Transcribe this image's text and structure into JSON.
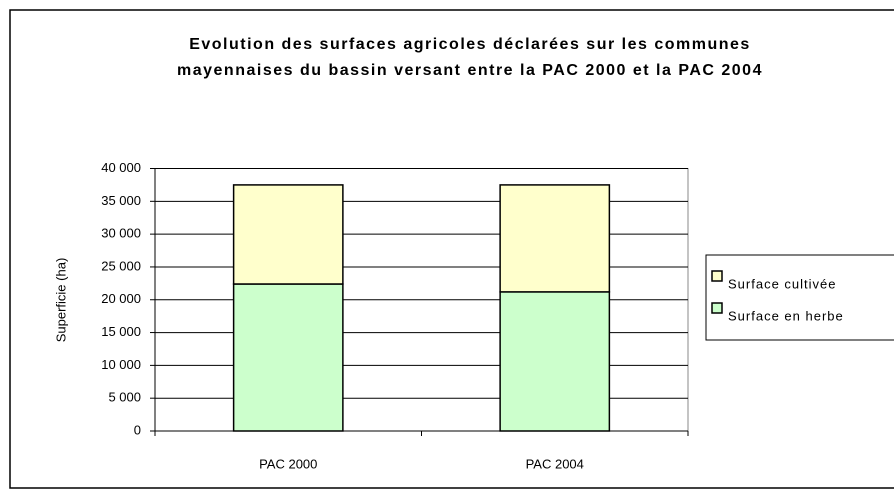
{
  "chart_data": {
    "type": "bar",
    "stacked": true,
    "title": "Evolution des surfaces agricoles déclarées sur les communes mayennaises du bassin versant entre la PAC 2000 et la PAC 2004",
    "y_label": "Superficie (ha)",
    "categories": [
      "PAC 2000",
      "PAC 2004"
    ],
    "series": [
      {
        "name": "Surface en herbe",
        "color": "#ccffcc",
        "values": [
          22400,
          21200
        ]
      },
      {
        "name": "Surface cultivée",
        "color": "#ffffcc",
        "values": [
          15100,
          16300
        ]
      }
    ],
    "ylim": [
      0,
      40000
    ],
    "yticks": [
      0,
      {
        "value": 5000,
        "label": "5 000"
      },
      {
        "value": 10000,
        "label": "10 000"
      },
      {
        "value": 15000,
        "label": "15 000"
      },
      {
        "value": 20000,
        "label": "20 000"
      },
      {
        "value": 25000,
        "label": "25 000"
      },
      {
        "value": 30000,
        "label": "30 000"
      },
      {
        "value": 35000,
        "label": "35 000"
      },
      {
        "value": 40000,
        "label": "40 000"
      }
    ],
    "grid": true,
    "legend": "right"
  }
}
